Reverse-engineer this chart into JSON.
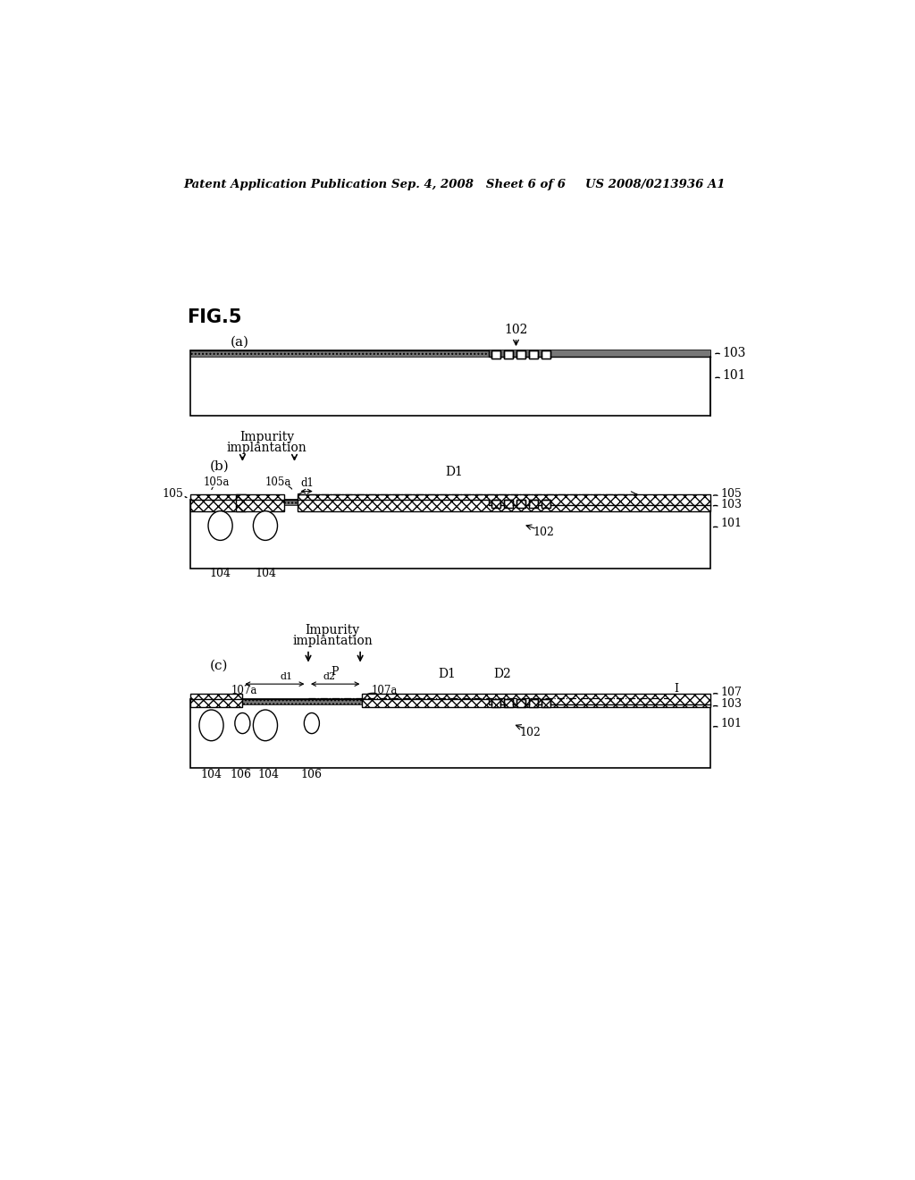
{
  "bg_color": "#ffffff",
  "header_left": "Patent Application Publication",
  "header_mid": "Sep. 4, 2008   Sheet 6 of 6",
  "header_right": "US 2008/0213936 A1",
  "fig_label": "FIG.5",
  "panel_a_label": "(a)",
  "panel_b_label": "(b)",
  "panel_c_label": "(c)",
  "layer_color": "#888888",
  "resist_color": "#cccccc",
  "impurity_color": "#aaaaaa"
}
